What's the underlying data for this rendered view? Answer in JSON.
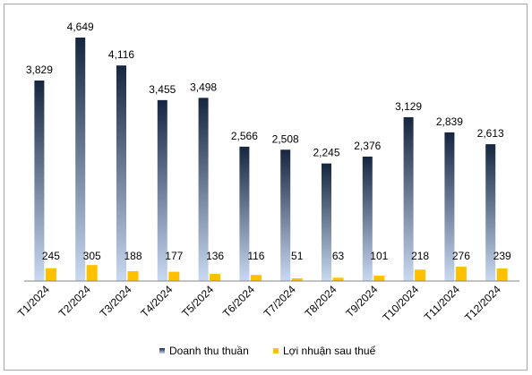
{
  "chart_data": {
    "type": "bar",
    "categories": [
      "T1/2024",
      "T2/2024",
      "T3/2024",
      "T4/2024",
      "T5/2024",
      "T6/2024",
      "T7/2024",
      "T8/2024",
      "T9/2024",
      "T10/2024",
      "T11/2024",
      "T12/2024"
    ],
    "series": [
      {
        "name": "Doanh thu thuần",
        "values": [
          3829,
          4649,
          4116,
          3455,
          3498,
          2566,
          2508,
          2245,
          2376,
          3129,
          2839,
          2613
        ],
        "labels": [
          "3,829",
          "4,649",
          "4,116",
          "3,455",
          "3,498",
          "2,566",
          "2,508",
          "2,245",
          "2,376",
          "3,129",
          "2,839",
          "2,613"
        ],
        "color_top": "#17263f",
        "color_bottom": "#c9d9f2"
      },
      {
        "name": "Lợi nhuận sau thuế",
        "values": [
          245,
          305,
          188,
          177,
          136,
          116,
          51,
          63,
          101,
          218,
          276,
          239
        ],
        "labels": [
          "245",
          "305",
          "188",
          "177",
          "136",
          "116",
          "51",
          "63",
          "101",
          "218",
          "276",
          "239"
        ],
        "color": "#ffc000"
      }
    ],
    "title": "",
    "xlabel": "",
    "ylabel": "",
    "ylim": [
      0,
      4700
    ],
    "grid": false,
    "legend": "bottom"
  }
}
